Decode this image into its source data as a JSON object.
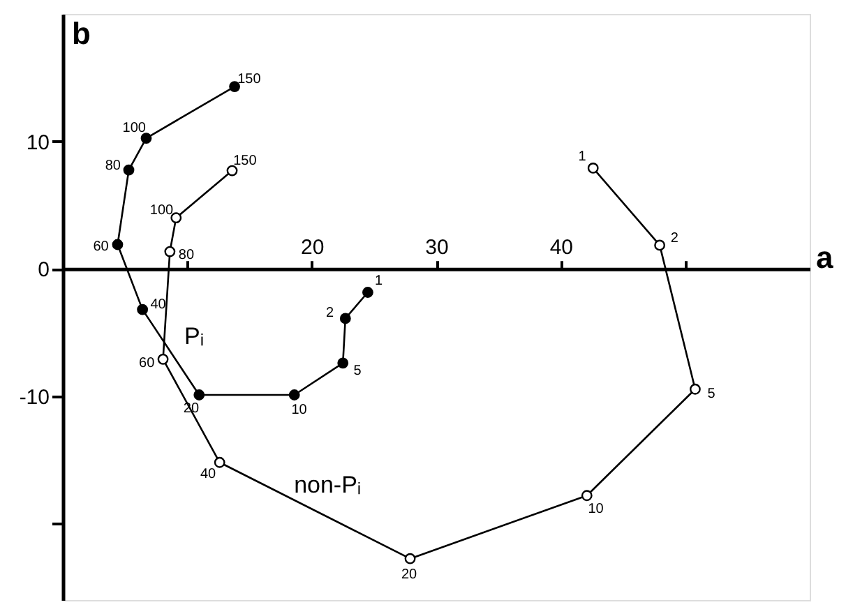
{
  "chart_data": {
    "type": "line",
    "xlabel": "a",
    "ylabel": "b",
    "xlim": [
      0,
      60
    ],
    "ylim": [
      -26,
      20
    ],
    "xticks": [
      {
        "value": 10,
        "label": null
      },
      20,
      30,
      40,
      {
        "value": 50,
        "label": null
      }
    ],
    "yticks": [
      {
        "value": -20,
        "label": null
      },
      -10,
      0,
      10
    ],
    "grid": false,
    "marker": "circle",
    "line_style": "solid",
    "series": [
      {
        "name": "Pᵢ",
        "color": "#000000",
        "x": [
          24.5,
          22.7,
          22.5,
          18.6,
          10.95,
          6.4,
          4.4,
          5.3,
          6.7,
          13.8
        ],
        "values": [
          -1.85,
          -3.9,
          -7.4,
          -9.9,
          -9.9,
          -3.2,
          1.9,
          7.75,
          10.25,
          14.3
        ]
      },
      {
        "name": "non-Pᵢ",
        "color": "#000000",
        "x": [
          42.6,
          47.95,
          50.8,
          42.1,
          27.9,
          12.6,
          8.05,
          8.6,
          9.1,
          13.6
        ],
        "values": [
          7.9,
          1.85,
          -9.45,
          -17.8,
          -22.75,
          -15.2,
          -7.1,
          1.35,
          4.0,
          7.7
        ]
      }
    ],
    "annotations": [
      {
        "text": "1",
        "x": 24.5,
        "y": -1.85
      },
      {
        "text": "2",
        "x": 22.7,
        "y": -3.9
      },
      {
        "text": "5",
        "x": 22.5,
        "y": -7.4
      },
      {
        "text": "10",
        "x": 18.6,
        "y": -9.9
      },
      {
        "text": "20",
        "x": 10.95,
        "y": -9.9
      },
      {
        "text": "40",
        "x": 6.4,
        "y": -3.2
      },
      {
        "text": "60",
        "x": 4.4,
        "y": 1.9
      },
      {
        "text": "80",
        "x": 5.3,
        "y": 7.75
      },
      {
        "text": "100",
        "x": 6.7,
        "y": 10.25
      },
      {
        "text": "150",
        "x": 13.8,
        "y": 14.3
      },
      {
        "text": "1",
        "x": 42.6,
        "y": 7.9
      },
      {
        "text": "2",
        "x": 47.95,
        "y": 1.85
      },
      {
        "text": "5",
        "x": 50.8,
        "y": -9.45
      },
      {
        "text": "10",
        "x": 42.1,
        "y": -17.8
      },
      {
        "text": "20",
        "x": 27.9,
        "y": -22.75
      },
      {
        "text": "40",
        "x": 12.6,
        "y": -15.2
      },
      {
        "text": "60",
        "x": 8.05,
        "y": -7.1
      },
      {
        "text": "80",
        "x": 8.6,
        "y": 1.35
      },
      {
        "text": "100",
        "x": 9.1,
        "y": 4.0
      },
      {
        "text": "150",
        "x": 13.6,
        "y": 7.7
      }
    ]
  }
}
